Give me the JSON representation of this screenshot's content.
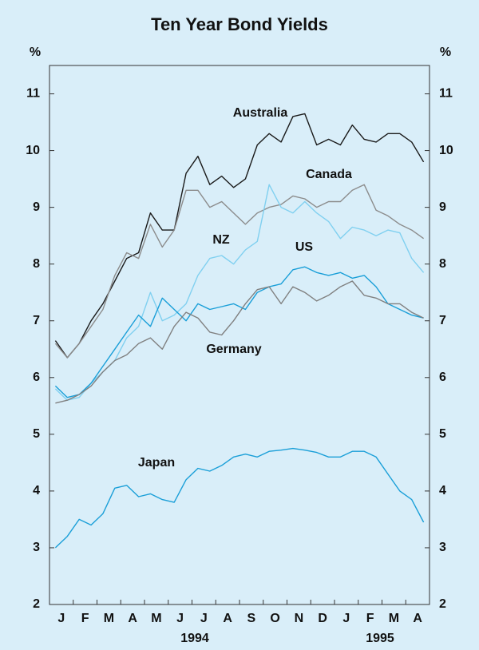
{
  "chart_data": {
    "type": "line",
    "title": "Ten Year Bond Yields",
    "y_label": "%",
    "categories": [
      "J",
      null,
      "F",
      null,
      "M",
      null,
      "A",
      null,
      "M",
      null,
      "J",
      null,
      "J",
      null,
      "A",
      null,
      "S",
      null,
      "O",
      null,
      "N",
      null,
      "D",
      null,
      "J",
      null,
      "F",
      null,
      "M",
      null,
      "A",
      null
    ],
    "years": [
      "1994",
      "1995"
    ],
    "ylim": [
      2,
      11.5
    ],
    "yticks": [
      2,
      3,
      4,
      5,
      6,
      7,
      8,
      9,
      10,
      11
    ],
    "series": [
      {
        "name": "Australia",
        "color": "#1a1a1a",
        "values": [
          6.65,
          6.35,
          6.6,
          7.0,
          7.3,
          7.7,
          8.1,
          8.2,
          8.9,
          8.6,
          8.6,
          9.6,
          9.9,
          9.4,
          9.55,
          9.35,
          9.5,
          10.1,
          10.3,
          10.15,
          10.6,
          10.65,
          10.1,
          10.2,
          10.1,
          10.45,
          10.2,
          10.15,
          10.3,
          10.3,
          10.15,
          9.8
        ]
      },
      {
        "name": "Canada",
        "color": "#8c8c8c",
        "values": [
          6.6,
          6.35,
          6.6,
          6.9,
          7.2,
          7.8,
          8.2,
          8.1,
          8.7,
          8.3,
          8.6,
          9.3,
          9.3,
          9.0,
          9.1,
          8.9,
          8.7,
          8.9,
          9.0,
          9.05,
          9.2,
          9.15,
          9.0,
          9.1,
          9.1,
          9.3,
          9.4,
          8.95,
          8.85,
          8.7,
          8.6,
          8.45
        ]
      },
      {
        "name": "NZ",
        "color": "#80d0f0",
        "values": [
          5.8,
          5.6,
          5.65,
          5.9,
          6.1,
          6.3,
          6.7,
          6.9,
          7.5,
          7.0,
          7.1,
          7.3,
          7.8,
          8.1,
          8.15,
          8.0,
          8.25,
          8.4,
          9.4,
          9.0,
          8.9,
          9.1,
          8.9,
          8.75,
          8.45,
          8.65,
          8.6,
          8.5,
          8.6,
          8.55,
          8.1,
          7.85
        ]
      },
      {
        "name": "US",
        "color": "#1a9fd8",
        "values": [
          5.85,
          5.65,
          5.7,
          5.9,
          6.2,
          6.5,
          6.8,
          7.1,
          6.9,
          7.4,
          7.2,
          7.0,
          7.3,
          7.2,
          7.25,
          7.3,
          7.2,
          7.5,
          7.6,
          7.65,
          7.9,
          7.95,
          7.85,
          7.8,
          7.85,
          7.75,
          7.8,
          7.6,
          7.3,
          7.2,
          7.1,
          7.05
        ]
      },
      {
        "name": "Germany",
        "color": "#808080",
        "values": [
          5.55,
          5.6,
          5.7,
          5.85,
          6.1,
          6.3,
          6.4,
          6.6,
          6.7,
          6.5,
          6.9,
          7.15,
          7.05,
          6.8,
          6.75,
          7.0,
          7.3,
          7.55,
          7.6,
          7.3,
          7.6,
          7.5,
          7.35,
          7.45,
          7.6,
          7.7,
          7.45,
          7.4,
          7.3,
          7.3,
          7.15,
          7.05
        ]
      },
      {
        "name": "Japan",
        "color": "#1a9fd8",
        "values": [
          3.0,
          3.2,
          3.5,
          3.4,
          3.6,
          4.05,
          4.1,
          3.9,
          3.95,
          3.85,
          3.8,
          4.2,
          4.4,
          4.35,
          4.45,
          4.6,
          4.65,
          4.6,
          4.7,
          4.72,
          4.75,
          4.72,
          4.68,
          4.6,
          4.6,
          4.7,
          4.7,
          4.6,
          4.3,
          4.0,
          3.85,
          3.45
        ]
      }
    ]
  }
}
